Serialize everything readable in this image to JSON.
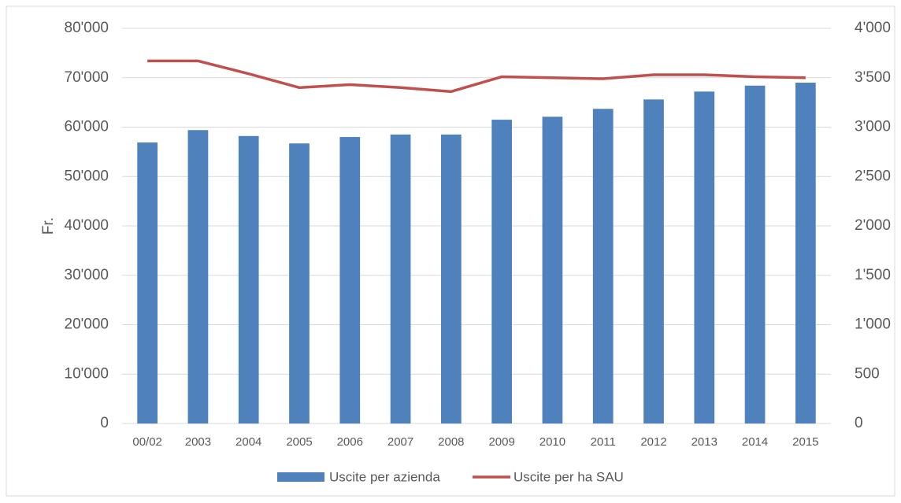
{
  "chart_data": {
    "type": "bar",
    "y_label": "Fr.",
    "categories": [
      "00/02",
      "2003",
      "2004",
      "2005",
      "2006",
      "2007",
      "2008",
      "2009",
      "2010",
      "2011",
      "2012",
      "2013",
      "2014",
      "2015"
    ],
    "series": [
      {
        "name": "Uscite per azienda",
        "type": "bar",
        "color": "#4f81bd",
        "values": [
          56900,
          59400,
          58200,
          56700,
          58000,
          58500,
          58500,
          61500,
          62100,
          63700,
          65600,
          67200,
          68400,
          69000
        ]
      },
      {
        "name": "Uscite per ha SAU",
        "type": "line",
        "axis": "y2",
        "color": "#c0504d",
        "values": [
          3670,
          3670,
          3540,
          3400,
          3430,
          3400,
          3360,
          3510,
          3500,
          3490,
          3530,
          3530,
          3510,
          3500
        ]
      }
    ],
    "ylim": [
      0,
      80000
    ],
    "yticks": [
      0,
      {
        "value": 10000,
        "label": "10'000"
      },
      {
        "value": 20000,
        "label": "20'000"
      },
      {
        "value": 30000,
        "label": "30'000"
      },
      {
        "value": 40000,
        "label": "40'000"
      },
      {
        "value": 50000,
        "label": "50'000"
      },
      {
        "value": 60000,
        "label": "60'000"
      },
      {
        "value": 70000,
        "label": "70'000"
      },
      {
        "value": 80000,
        "label": "80'000"
      }
    ],
    "y2lim": [
      0,
      4000
    ],
    "y2ticks": [
      0,
      500,
      {
        "value": 1000,
        "label": "1'000"
      },
      {
        "value": 1500,
        "label": "1'500"
      },
      {
        "value": 2000,
        "label": "2'000"
      },
      {
        "value": 2500,
        "label": "2'500"
      },
      {
        "value": 3000,
        "label": "3'000"
      },
      {
        "value": 3500,
        "label": "3'500"
      },
      {
        "value": 4000,
        "label": "4'000"
      }
    ],
    "grid": true,
    "legend": "bottom"
  }
}
